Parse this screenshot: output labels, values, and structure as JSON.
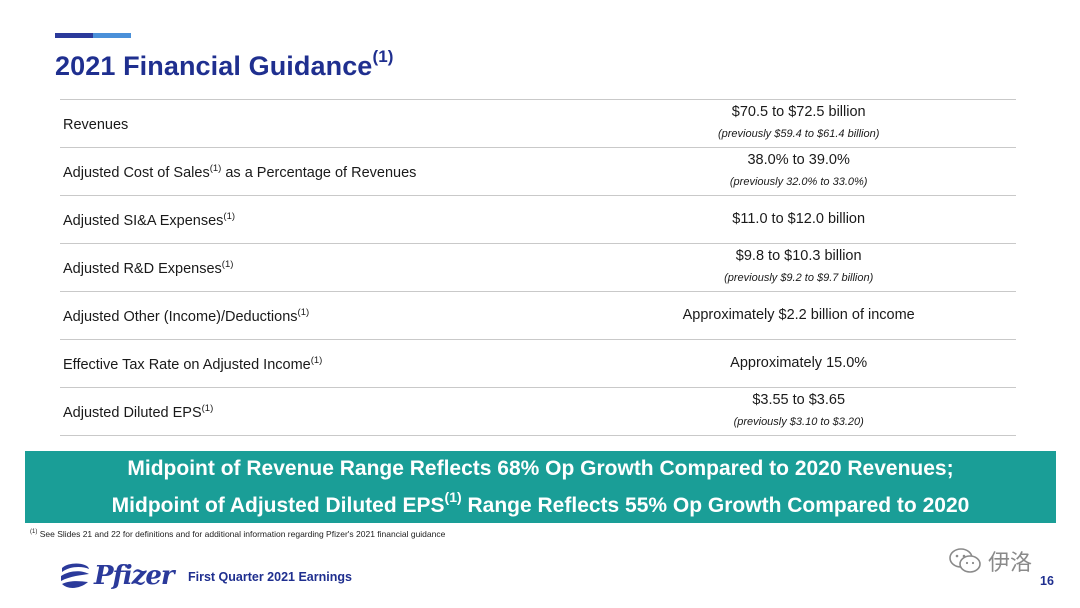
{
  "header": {
    "title": "2021 Financial Guidance",
    "title_sup": "(1)",
    "accent_colors": [
      "#2b3a9b",
      "#4a90d9"
    ]
  },
  "guidance_rows": [
    {
      "label": "Revenues",
      "label_sup": "",
      "label_suffix": "",
      "value": "$70.5 to $72.5 billion",
      "previous": "(previously $59.4 to $61.4 billion)"
    },
    {
      "label": "Adjusted Cost of Sales",
      "label_sup": "(1)",
      "label_suffix": " as a Percentage of Revenues",
      "value": "38.0% to 39.0%",
      "previous": "(previously 32.0% to 33.0%)"
    },
    {
      "label": "Adjusted SI&A Expenses",
      "label_sup": "(1)",
      "label_suffix": "",
      "value": "$11.0 to $12.0 billion",
      "previous": ""
    },
    {
      "label": "Adjusted R&D Expenses",
      "label_sup": "(1)",
      "label_suffix": "",
      "value": "$9.8 to $10.3 billion",
      "previous": "(previously $9.2 to $9.7 billion)"
    },
    {
      "label": "Adjusted Other (Income)/Deductions",
      "label_sup": "(1)",
      "label_suffix": "",
      "value": "Approximately $2.2 billion of income",
      "previous": ""
    },
    {
      "label": "Effective Tax Rate on Adjusted Income",
      "label_sup": "(1)",
      "label_suffix": "",
      "value": "Approximately 15.0%",
      "previous": ""
    },
    {
      "label": "Adjusted Diluted EPS",
      "label_sup": "(1)",
      "label_suffix": "",
      "value": "$3.55 to $3.65",
      "previous": "(previously $3.10 to $3.20)"
    }
  ],
  "banner": {
    "line1": "Midpoint of Revenue Range Reflects 68% Op Growth Compared to 2020 Revenues;",
    "line2_pre": "Midpoint of Adjusted Diluted EPS",
    "line2_sup": "(1)",
    "line2_post": " Range Reflects 55% Op Growth Compared to 2020",
    "color": "#1a9e97"
  },
  "footnote": {
    "sup": "(1)",
    "text": " See Slides 21 and 22 for definitions and for additional information regarding Pfizer's 2021 financial guidance"
  },
  "footer": {
    "logo_text": "Pfizer",
    "logo_icon": "pfizer-logo-icon",
    "subtitle": "First Quarter 2021 Earnings",
    "page_number": "16",
    "watermark_icon": "wechat-icon",
    "watermark_text": "伊洛"
  }
}
